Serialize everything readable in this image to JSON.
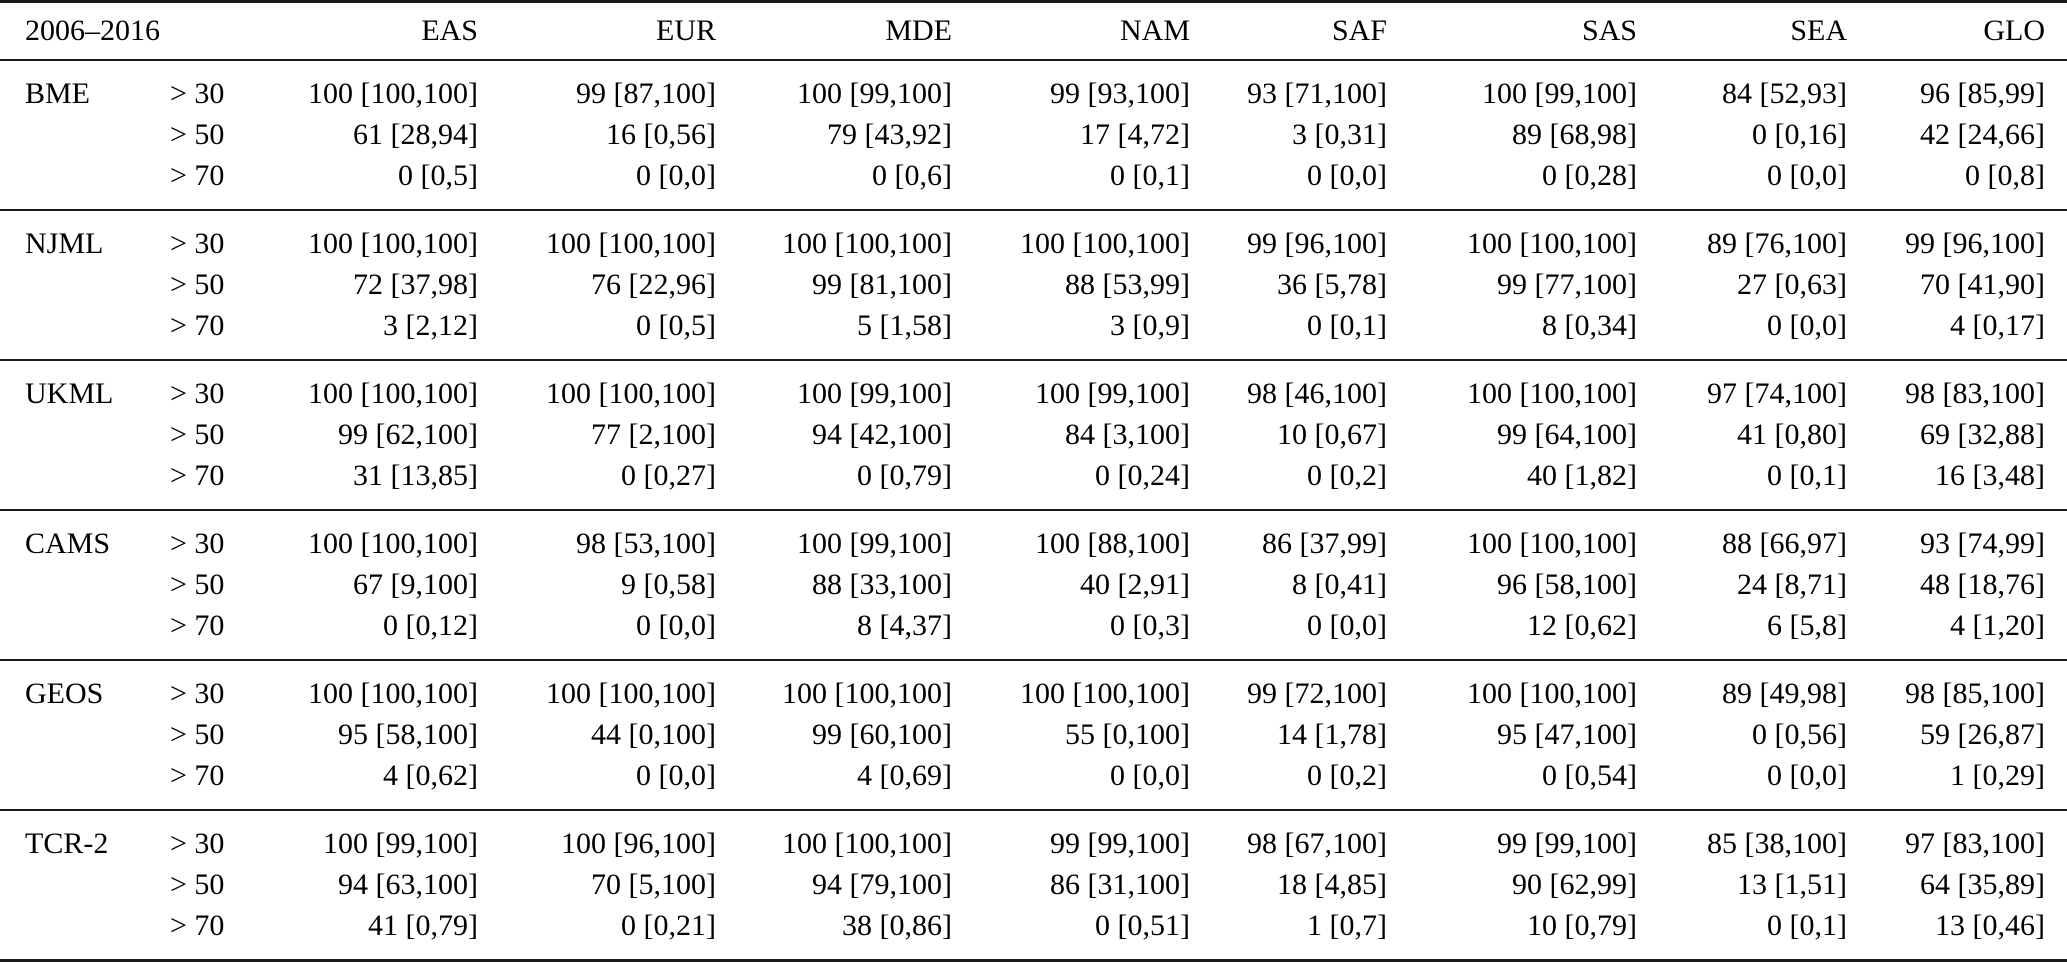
{
  "colors": {
    "background": "#ffffff",
    "text": "#000000",
    "rule": "#1a1a1a"
  },
  "table": {
    "period_label": "2006–2016",
    "region_columns": [
      "EAS",
      "EUR",
      "MDE",
      "NAM",
      "SAF",
      "SAS",
      "SEA",
      "GLO"
    ],
    "threshold_labels": [
      "> 30",
      "> 50",
      "> 70"
    ],
    "groups": [
      {
        "model": "BME",
        "rows": [
          [
            "100 [100,100]",
            "99 [87,100]",
            "100 [99,100]",
            "99 [93,100]",
            "93 [71,100]",
            "100 [99,100]",
            "84 [52,93]",
            "96 [85,99]"
          ],
          [
            "61 [28,94]",
            "16 [0,56]",
            "79 [43,92]",
            "17 [4,72]",
            "3 [0,31]",
            "89 [68,98]",
            "0 [0,16]",
            "42 [24,66]"
          ],
          [
            "0 [0,5]",
            "0 [0,0]",
            "0 [0,6]",
            "0 [0,1]",
            "0 [0,0]",
            "0 [0,28]",
            "0 [0,0]",
            "0 [0,8]"
          ]
        ]
      },
      {
        "model": "NJML",
        "rows": [
          [
            "100 [100,100]",
            "100 [100,100]",
            "100 [100,100]",
            "100 [100,100]",
            "99 [96,100]",
            "100 [100,100]",
            "89 [76,100]",
            "99 [96,100]"
          ],
          [
            "72 [37,98]",
            "76 [22,96]",
            "99 [81,100]",
            "88 [53,99]",
            "36 [5,78]",
            "99 [77,100]",
            "27 [0,63]",
            "70 [41,90]"
          ],
          [
            "3 [2,12]",
            "0 [0,5]",
            "5 [1,58]",
            "3 [0,9]",
            "0 [0,1]",
            "8 [0,34]",
            "0 [0,0]",
            "4 [0,17]"
          ]
        ]
      },
      {
        "model": "UKML",
        "rows": [
          [
            "100 [100,100]",
            "100 [100,100]",
            "100 [99,100]",
            "100 [99,100]",
            "98 [46,100]",
            "100 [100,100]",
            "97 [74,100]",
            "98 [83,100]"
          ],
          [
            "99 [62,100]",
            "77 [2,100]",
            "94 [42,100]",
            "84 [3,100]",
            "10 [0,67]",
            "99 [64,100]",
            "41 [0,80]",
            "69 [32,88]"
          ],
          [
            "31 [13,85]",
            "0 [0,27]",
            "0 [0,79]",
            "0 [0,24]",
            "0 [0,2]",
            "40 [1,82]",
            "0 [0,1]",
            "16 [3,48]"
          ]
        ]
      },
      {
        "model": "CAMS",
        "rows": [
          [
            "100 [100,100]",
            "98 [53,100]",
            "100 [99,100]",
            "100 [88,100]",
            "86 [37,99]",
            "100 [100,100]",
            "88 [66,97]",
            "93 [74,99]"
          ],
          [
            "67 [9,100]",
            "9 [0,58]",
            "88 [33,100]",
            "40 [2,91]",
            "8 [0,41]",
            "96 [58,100]",
            "24 [8,71]",
            "48 [18,76]"
          ],
          [
            "0 [0,12]",
            "0 [0,0]",
            "8 [4,37]",
            "0 [0,3]",
            "0 [0,0]",
            "12 [0,62]",
            "6 [5,8]",
            "4 [1,20]"
          ]
        ]
      },
      {
        "model": "GEOS",
        "rows": [
          [
            "100 [100,100]",
            "100 [100,100]",
            "100 [100,100]",
            "100 [100,100]",
            "99 [72,100]",
            "100 [100,100]",
            "89 [49,98]",
            "98 [85,100]"
          ],
          [
            "95 [58,100]",
            "44 [0,100]",
            "99 [60,100]",
            "55 [0,100]",
            "14 [1,78]",
            "95 [47,100]",
            "0 [0,56]",
            "59 [26,87]"
          ],
          [
            "4 [0,62]",
            "0 [0,0]",
            "4 [0,69]",
            "0 [0,0]",
            "0 [0,2]",
            "0 [0,54]",
            "0 [0,0]",
            "1 [0,29]"
          ]
        ]
      },
      {
        "model": "TCR-2",
        "rows": [
          [
            "100 [99,100]",
            "100 [96,100]",
            "100 [100,100]",
            "99 [99,100]",
            "98 [67,100]",
            "99 [99,100]",
            "85 [38,100]",
            "97 [83,100]"
          ],
          [
            "94 [63,100]",
            "70 [5,100]",
            "94 [79,100]",
            "86 [31,100]",
            "18 [4,85]",
            "90 [62,99]",
            "13 [1,51]",
            "64 [35,89]"
          ],
          [
            "41 [0,79]",
            "0 [0,21]",
            "38 [0,86]",
            "0 [0,51]",
            "1 [0,7]",
            "10 [0,79]",
            "0 [0,1]",
            "13 [0,46]"
          ]
        ]
      }
    ]
  }
}
